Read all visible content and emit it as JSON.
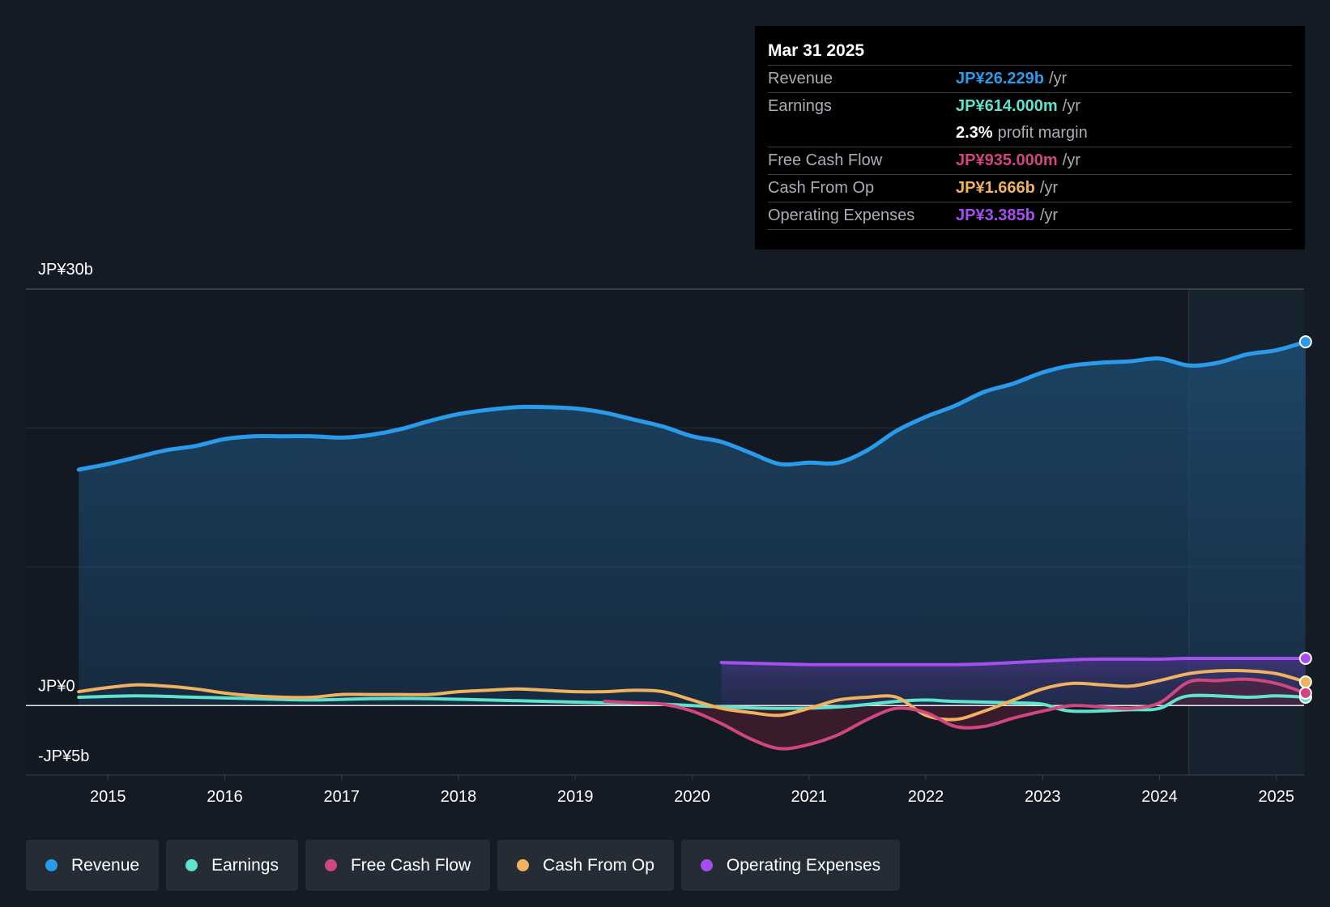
{
  "tooltip": {
    "date": "Mar 31 2025",
    "rows": [
      {
        "label": "Revenue",
        "value": "JP¥26.229b",
        "unit": "/yr",
        "color": "#2a9bea"
      },
      {
        "label": "Earnings",
        "value": "JP¥614.000m",
        "unit": "/yr",
        "color": "#5fe3cf"
      },
      {
        "label": "",
        "pct": "2.3%",
        "unit": "profit margin"
      },
      {
        "label": "Free Cash Flow",
        "value": "JP¥935.000m",
        "unit": "/yr",
        "color": "#d0467f"
      },
      {
        "label": "Cash From Op",
        "value": "JP¥1.666b",
        "unit": "/yr",
        "color": "#f0b25f"
      },
      {
        "label": "Operating Expenses",
        "value": "JP¥3.385b",
        "unit": "/yr",
        "color": "#a64ff0"
      }
    ]
  },
  "legend": [
    {
      "label": "Revenue",
      "color": "#2a9bea"
    },
    {
      "label": "Earnings",
      "color": "#5fe3cf"
    },
    {
      "label": "Free Cash Flow",
      "color": "#d0467f"
    },
    {
      "label": "Cash From Op",
      "color": "#f0b25f"
    },
    {
      "label": "Operating Expenses",
      "color": "#a64ff0"
    }
  ],
  "chart_data": {
    "type": "area",
    "title": "",
    "xlabel": "",
    "ylabel": "",
    "currency_unit": "JP¥ billions",
    "y_axis_labels": [
      "JP¥30b",
      "JP¥0",
      "-JP¥5b"
    ],
    "ylim": [
      -5,
      30
    ],
    "xlim": [
      2014.6,
      2025.25
    ],
    "x_ticks": [
      2015,
      2016,
      2017,
      2018,
      2019,
      2020,
      2021,
      2022,
      2023,
      2024,
      2025
    ],
    "highlight_start": 2024.25,
    "series": [
      {
        "name": "Revenue",
        "color": "#2a9bea",
        "x": [
          2014.75,
          2015.0,
          2015.25,
          2015.5,
          2015.75,
          2016.0,
          2016.25,
          2016.5,
          2016.75,
          2017.0,
          2017.25,
          2017.5,
          2017.75,
          2018.0,
          2018.25,
          2018.5,
          2018.75,
          2019.0,
          2019.25,
          2019.5,
          2019.75,
          2020.0,
          2020.25,
          2020.5,
          2020.75,
          2021.0,
          2021.25,
          2021.5,
          2021.75,
          2022.0,
          2022.25,
          2022.5,
          2022.75,
          2023.0,
          2023.25,
          2023.5,
          2023.75,
          2024.0,
          2024.25,
          2024.5,
          2024.75,
          2025.0,
          2025.25
        ],
        "values": [
          17.0,
          17.4,
          17.9,
          18.4,
          18.7,
          19.2,
          19.4,
          19.4,
          19.4,
          19.3,
          19.5,
          19.9,
          20.5,
          21.0,
          21.3,
          21.5,
          21.5,
          21.4,
          21.1,
          20.6,
          20.1,
          19.4,
          19.0,
          18.2,
          17.4,
          17.5,
          17.5,
          18.4,
          19.8,
          20.8,
          21.6,
          22.6,
          23.2,
          24.0,
          24.5,
          24.7,
          24.8,
          25.0,
          24.5,
          24.7,
          25.3,
          25.6,
          26.2
        ]
      },
      {
        "name": "Earnings",
        "color": "#5fe3cf",
        "x": [
          2014.75,
          2015.25,
          2015.75,
          2016.25,
          2016.75,
          2017.25,
          2017.75,
          2018.25,
          2018.75,
          2019.25,
          2019.75,
          2020.25,
          2020.75,
          2021.25,
          2021.75,
          2022.0,
          2022.25,
          2022.75,
          2023.0,
          2023.25,
          2023.75,
          2024.0,
          2024.25,
          2024.75,
          2025.0,
          2025.25
        ],
        "values": [
          0.6,
          0.7,
          0.6,
          0.5,
          0.4,
          0.5,
          0.5,
          0.4,
          0.3,
          0.2,
          0.1,
          -0.1,
          -0.2,
          -0.1,
          0.3,
          0.4,
          0.3,
          0.2,
          0.1,
          -0.4,
          -0.3,
          -0.2,
          0.7,
          0.6,
          0.7,
          0.6
        ]
      },
      {
        "name": "Free Cash Flow",
        "color": "#d0467f",
        "x": [
          2019.25,
          2019.5,
          2019.75,
          2020.0,
          2020.25,
          2020.5,
          2020.75,
          2021.0,
          2021.25,
          2021.5,
          2021.75,
          2022.0,
          2022.25,
          2022.5,
          2022.75,
          2023.0,
          2023.25,
          2023.5,
          2023.75,
          2024.0,
          2024.25,
          2024.5,
          2024.75,
          2025.0,
          2025.25
        ],
        "values": [
          0.3,
          0.2,
          0.1,
          -0.4,
          -1.3,
          -2.4,
          -3.1,
          -2.8,
          -2.1,
          -1.0,
          -0.2,
          -0.5,
          -1.5,
          -1.5,
          -0.9,
          -0.4,
          0.0,
          -0.1,
          -0.2,
          0.2,
          1.7,
          1.8,
          1.9,
          1.6,
          0.9
        ]
      },
      {
        "name": "Cash From Op",
        "color": "#f0b25f",
        "x": [
          2014.75,
          2015.0,
          2015.25,
          2015.5,
          2015.75,
          2016.0,
          2016.25,
          2016.5,
          2016.75,
          2017.0,
          2017.25,
          2017.5,
          2017.75,
          2018.0,
          2018.25,
          2018.5,
          2018.75,
          2019.0,
          2019.25,
          2019.5,
          2019.75,
          2020.0,
          2020.25,
          2020.5,
          2020.75,
          2021.0,
          2021.25,
          2021.5,
          2021.75,
          2022.0,
          2022.25,
          2022.5,
          2022.75,
          2023.0,
          2023.25,
          2023.5,
          2023.75,
          2024.0,
          2024.25,
          2024.5,
          2024.75,
          2025.0,
          2025.25
        ],
        "values": [
          1.0,
          1.3,
          1.5,
          1.4,
          1.2,
          0.9,
          0.7,
          0.6,
          0.6,
          0.8,
          0.8,
          0.8,
          0.8,
          1.0,
          1.1,
          1.2,
          1.1,
          1.0,
          1.0,
          1.1,
          1.0,
          0.4,
          -0.2,
          -0.5,
          -0.7,
          -0.2,
          0.4,
          0.6,
          0.6,
          -0.7,
          -1.0,
          -0.4,
          0.4,
          1.2,
          1.6,
          1.5,
          1.4,
          1.8,
          2.3,
          2.5,
          2.5,
          2.3,
          1.7
        ]
      },
      {
        "name": "Operating Expenses",
        "color": "#a64ff0",
        "x": [
          2020.25,
          2020.5,
          2020.75,
          2021.0,
          2021.25,
          2021.5,
          2021.75,
          2022.0,
          2022.25,
          2022.5,
          2022.75,
          2023.0,
          2023.25,
          2023.5,
          2023.75,
          2024.0,
          2024.25,
          2024.5,
          2024.75,
          2025.0,
          2025.25
        ],
        "values": [
          3.1,
          3.05,
          3.0,
          2.95,
          2.95,
          2.95,
          2.95,
          2.95,
          2.95,
          3.0,
          3.1,
          3.2,
          3.3,
          3.35,
          3.35,
          3.35,
          3.4,
          3.4,
          3.4,
          3.4,
          3.4
        ]
      }
    ]
  }
}
